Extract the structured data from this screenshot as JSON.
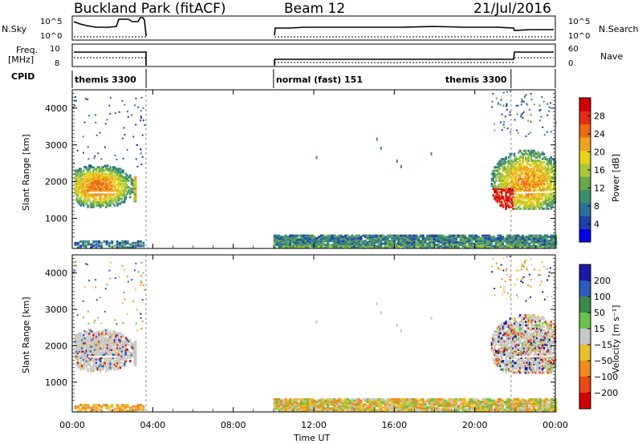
{
  "header": {
    "station": "Buckland Park (fitACF)",
    "beam": "Beam 12",
    "date": "21/Jul/2016"
  },
  "status_panels": {
    "left_labels": [
      "N.Sky",
      "Freq.",
      "[MHz]",
      "CPID"
    ],
    "right_labels": [
      "N.Search",
      "Nave"
    ],
    "nsky_ticks": [
      "10^5",
      "10^0"
    ],
    "nsearch_ticks": [
      "10^5",
      "10^0"
    ],
    "freq_ticks": [
      "10",
      "8"
    ],
    "nave_ticks": [
      "60",
      "0"
    ],
    "cpid_segments": [
      {
        "label": "themis 3300",
        "t0": 0.0,
        "t1": 3.67
      },
      {
        "label": "normal (fast) 151",
        "t0": 10.0,
        "t1": 21.8
      },
      {
        "label": "themis 3300",
        "t0": 21.8,
        "t1": 24.0
      }
    ],
    "data_gaps": [
      [
        3.67,
        10.0
      ]
    ]
  },
  "chart_data": [
    {
      "type": "heatmap",
      "quantity": "Power",
      "ylabel": "Slant Range [km]",
      "xlabel": "",
      "ylim": [
        180,
        4500
      ],
      "yticks": [
        "1000",
        "2000",
        "3000",
        "4000"
      ],
      "colorbar": {
        "label": "Power [dB]",
        "range": [
          0,
          32
        ],
        "ticks": [
          "4",
          "8",
          "12",
          "16",
          "20",
          "24",
          "28"
        ]
      },
      "features": [
        {
          "region": "ground scatter band",
          "t_range": [
            10.0,
            24.0
          ],
          "range_km": [
            200,
            550
          ],
          "level_db": [
            4,
            16
          ]
        },
        {
          "region": "ionospheric scatter",
          "t_range": [
            0.0,
            3.6
          ],
          "range_km": [
            1300,
            2400
          ],
          "level_db": [
            4,
            24
          ]
        },
        {
          "region": "ionospheric scatter",
          "t_range": [
            20.8,
            24.0
          ],
          "range_km": [
            1300,
            3200
          ],
          "level_db": [
            4,
            30
          ]
        }
      ]
    },
    {
      "type": "heatmap",
      "quantity": "Velocity",
      "ylabel": "Slant Range [km]",
      "xlabel": "Time UT",
      "ylim": [
        180,
        4500
      ],
      "yticks": [
        "1000",
        "2000",
        "3000",
        "4000"
      ],
      "xticks": [
        "00:00",
        "04:00",
        "08:00",
        "12:00",
        "16:00",
        "20:00",
        "00:00"
      ],
      "colorbar": {
        "label": "Velocity [m s⁻¹]",
        "ticks": [
          "200",
          "100",
          "50",
          "15",
          "−15",
          "−50",
          "−100",
          "−200"
        ]
      },
      "features": [
        {
          "region": "ground scatter (grey)",
          "t_range": [
            0.0,
            3.6
          ],
          "range_km": [
            1400,
            2300
          ]
        },
        {
          "region": "low velocity band",
          "t_range": [
            10.0,
            24.0
          ],
          "range_km": [
            200,
            550
          ]
        },
        {
          "region": "mixed velocities",
          "t_range": [
            20.8,
            24.0
          ],
          "range_km": [
            1300,
            3800
          ]
        }
      ]
    }
  ]
}
